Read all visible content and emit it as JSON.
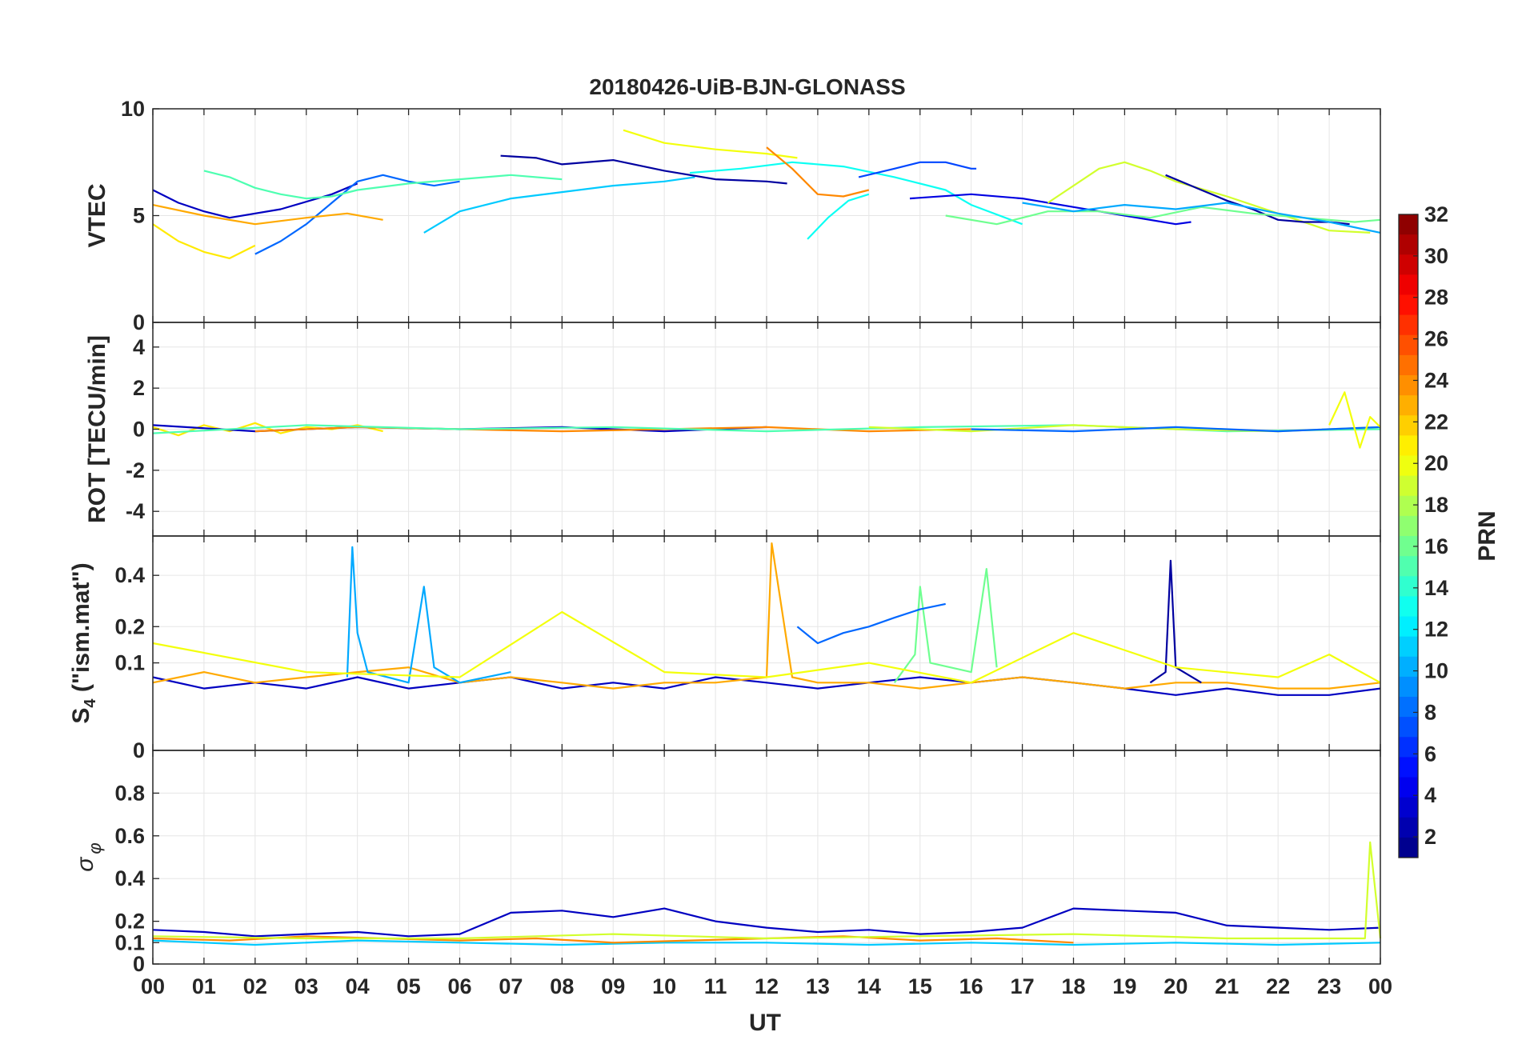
{
  "title": "20180426-UiB-BJN-GLONASS",
  "xlabel": "UT",
  "x_ticks": [
    "00",
    "01",
    "02",
    "03",
    "04",
    "05",
    "06",
    "07",
    "08",
    "09",
    "10",
    "11",
    "12",
    "13",
    "14",
    "15",
    "16",
    "17",
    "18",
    "19",
    "20",
    "21",
    "22",
    "23",
    "00"
  ],
  "colorbar": {
    "label": "PRN",
    "ticks": [
      "2",
      "4",
      "6",
      "8",
      "10",
      "12",
      "14",
      "16",
      "18",
      "20",
      "22",
      "24",
      "26",
      "28",
      "30",
      "32"
    ],
    "range": [
      1,
      32
    ],
    "colormap": "jet"
  },
  "colors": {
    "axes": "#262626",
    "grid": "#e6e6e6",
    "background": "#ffffff"
  },
  "chart_data": [
    {
      "type": "line",
      "panel": "vtec",
      "ylabel": "VTEC",
      "y_ticks": [
        "0",
        "5",
        "10"
      ],
      "ylim": [
        0,
        10
      ],
      "xlim": [
        0,
        24
      ],
      "series": [
        {
          "prn": 3,
          "x": [
            0.0,
            0.5,
            1.0,
            1.5,
            2.5,
            3.5,
            4.0
          ],
          "y": [
            6.2,
            5.6,
            5.2,
            4.9,
            5.3,
            6.0,
            6.5
          ]
        },
        {
          "prn": 8,
          "x": [
            2.0,
            2.5,
            3.0,
            3.5,
            4.0,
            4.5,
            5.0,
            5.5,
            6.0
          ],
          "y": [
            3.2,
            3.8,
            4.6,
            5.6,
            6.6,
            6.9,
            6.6,
            6.4,
            6.6
          ]
        },
        {
          "prn": 11,
          "x": [
            5.3,
            6.0,
            7.0,
            8.0,
            9.0,
            10.0,
            10.6
          ],
          "y": [
            4.2,
            5.2,
            5.8,
            6.1,
            6.4,
            6.6,
            6.8
          ]
        },
        {
          "prn": 21,
          "x": [
            0.0,
            0.5,
            1.0,
            1.5,
            2.0
          ],
          "y": [
            4.6,
            3.8,
            3.3,
            3.0,
            3.6
          ]
        },
        {
          "prn": 23,
          "x": [
            0.0,
            1.0,
            2.0,
            3.0,
            3.8,
            4.5
          ],
          "y": [
            5.5,
            5.0,
            4.6,
            4.9,
            5.1,
            4.8
          ]
        },
        {
          "prn": 15,
          "x": [
            1.0,
            1.5,
            2.0,
            2.5,
            3.0,
            3.5,
            4.0,
            5.0,
            6.0,
            7.0,
            8.0
          ],
          "y": [
            7.1,
            6.8,
            6.3,
            6.0,
            5.8,
            5.9,
            6.2,
            6.5,
            6.7,
            6.9,
            6.7
          ]
        },
        {
          "prn": 2,
          "x": [
            6.8,
            7.5,
            8.0,
            9.0,
            10.0,
            11.0,
            12.0,
            12.4
          ],
          "y": [
            7.8,
            7.7,
            7.4,
            7.6,
            7.1,
            6.7,
            6.6,
            6.5
          ]
        },
        {
          "prn": 20,
          "x": [
            9.2,
            10.0,
            11.0,
            12.0,
            12.6
          ],
          "y": [
            9.0,
            8.4,
            8.1,
            7.9,
            7.7
          ]
        },
        {
          "prn": 13,
          "x": [
            10.5,
            11.5,
            12.5,
            13.5,
            14.5,
            15.5,
            16.0,
            17.0
          ],
          "y": [
            7.0,
            7.2,
            7.5,
            7.3,
            6.8,
            6.2,
            5.5,
            4.6
          ]
        },
        {
          "prn": 24,
          "x": [
            12.0,
            12.5,
            13.0,
            13.5,
            14.0
          ],
          "y": [
            8.2,
            7.2,
            6.0,
            5.9,
            6.2
          ]
        },
        {
          "prn": 13,
          "x": [
            12.8,
            13.2,
            13.6,
            14.0
          ],
          "y": [
            3.9,
            4.9,
            5.7,
            6.0
          ]
        },
        {
          "prn": 7,
          "x": [
            13.8,
            14.5,
            15.0,
            15.5,
            16.0,
            16.1
          ],
          "y": [
            6.8,
            7.2,
            7.5,
            7.5,
            7.2,
            7.2
          ]
        },
        {
          "prn": 4,
          "x": [
            14.8,
            16.0,
            17.0,
            18.0,
            19.0,
            20.0,
            20.3
          ],
          "y": [
            5.8,
            6.0,
            5.8,
            5.4,
            5.0,
            4.6,
            4.7
          ]
        },
        {
          "prn": 19,
          "x": [
            17.5,
            18.5,
            19.0,
            19.5,
            20.0,
            21.0,
            22.0,
            23.0,
            23.8
          ],
          "y": [
            5.6,
            7.2,
            7.5,
            7.1,
            6.6,
            5.9,
            5.1,
            4.3,
            4.2
          ]
        },
        {
          "prn": 2,
          "x": [
            19.8,
            20.5,
            21.0,
            21.5,
            22.0,
            22.5,
            23.0,
            23.4
          ],
          "y": [
            6.9,
            6.2,
            5.7,
            5.3,
            4.8,
            4.7,
            4.7,
            4.6
          ]
        },
        {
          "prn": 16,
          "x": [
            15.5,
            16.5,
            17.5,
            18.5,
            19.5,
            20.5,
            21.5,
            22.5,
            23.5,
            24.0
          ],
          "y": [
            5.0,
            4.6,
            5.2,
            5.2,
            4.9,
            5.4,
            5.1,
            4.9,
            4.7,
            4.8
          ]
        },
        {
          "prn": 10,
          "x": [
            17.0,
            18.0,
            19.0,
            20.0,
            21.0,
            22.0,
            23.0,
            24.0
          ],
          "y": [
            5.6,
            5.2,
            5.5,
            5.3,
            5.6,
            5.1,
            4.7,
            4.2
          ]
        }
      ]
    },
    {
      "type": "line",
      "panel": "rot",
      "ylabel": "ROT [TECU/min]",
      "y_ticks": [
        "-4",
        "-2",
        "0",
        "2",
        "4"
      ],
      "ylim": [
        -5.2,
        5.2
      ],
      "xlim": [
        0,
        24
      ],
      "series": [
        {
          "prn": 21,
          "x": [
            0.0,
            0.5,
            1.0,
            1.5,
            2.0,
            2.5,
            3.0,
            3.5,
            4.0,
            4.5
          ],
          "y": [
            0.1,
            -0.3,
            0.2,
            -0.1,
            0.3,
            -0.2,
            0.1,
            0.0,
            0.2,
            -0.1
          ]
        },
        {
          "prn": 3,
          "x": [
            0.0,
            2.0,
            4.0,
            6.0,
            8.0,
            10.0,
            12.0
          ],
          "y": [
            0.2,
            -0.1,
            0.1,
            0.0,
            0.1,
            -0.1,
            0.1
          ]
        },
        {
          "prn": 24,
          "x": [
            2.0,
            4.0,
            6.0,
            8.0,
            10.0,
            12.0,
            14.0,
            16.0
          ],
          "y": [
            -0.1,
            0.1,
            0.0,
            -0.1,
            0.0,
            0.1,
            -0.1,
            0.0
          ]
        },
        {
          "prn": 15,
          "x": [
            0.0,
            3.0,
            6.0,
            9.0,
            12.0,
            15.0,
            18.0,
            21.0,
            24.0
          ],
          "y": [
            -0.2,
            0.2,
            0.0,
            0.1,
            -0.1,
            0.1,
            0.2,
            -0.1,
            0.0
          ]
        },
        {
          "prn": 19,
          "x": [
            14.0,
            16.0,
            18.0,
            20.0,
            22.0,
            24.0
          ],
          "y": [
            0.1,
            -0.1,
            0.2,
            0.0,
            -0.1,
            0.1
          ]
        },
        {
          "prn": 8,
          "x": [
            16.0,
            18.0,
            20.0,
            22.0,
            24.0
          ],
          "y": [
            0.0,
            -0.1,
            0.1,
            -0.1,
            0.1
          ]
        },
        {
          "prn": 20,
          "x": [
            23.0,
            23.3,
            23.6,
            23.8,
            24.0
          ],
          "y": [
            0.2,
            1.8,
            -0.9,
            0.6,
            0.1
          ]
        }
      ]
    },
    {
      "type": "line",
      "panel": "s4",
      "ylabel": "S4 (\"ism.mat\")",
      "y_ticks": [
        "0",
        "0.1",
        "0.2",
        "0.4"
      ],
      "ylim": [
        0,
        0.6
      ],
      "y_scale": "sqrt",
      "xlim": [
        0,
        24
      ],
      "series": [
        {
          "prn": 3,
          "x": [
            0.0,
            1.0,
            2.0,
            3.0,
            4.0,
            5.0,
            6.0,
            7.0,
            8.0,
            9.0,
            10.0,
            11.0,
            12.0,
            13.0,
            14.0,
            15.0,
            16.0,
            17.0,
            18.0,
            19.0,
            20.0,
            21.0,
            22.0,
            23.0,
            24.0
          ],
          "y": [
            0.07,
            0.05,
            0.06,
            0.05,
            0.07,
            0.05,
            0.06,
            0.07,
            0.05,
            0.06,
            0.05,
            0.07,
            0.06,
            0.05,
            0.06,
            0.07,
            0.06,
            0.07,
            0.06,
            0.05,
            0.04,
            0.05,
            0.04,
            0.04,
            0.05
          ]
        },
        {
          "prn": 23,
          "x": [
            0.0,
            1.0,
            2.0,
            3.0,
            4.0,
            5.0,
            6.0,
            7.0,
            8.0,
            9.0,
            10.0,
            11.0,
            12.0,
            12.1,
            12.5,
            13.0,
            14.0,
            15.0,
            16.0,
            17.0,
            18.0,
            19.0,
            20.0,
            21.0,
            22.0,
            23.0,
            24.0
          ],
          "y": [
            0.06,
            0.08,
            0.06,
            0.07,
            0.08,
            0.09,
            0.06,
            0.07,
            0.06,
            0.05,
            0.06,
            0.06,
            0.07,
            0.56,
            0.07,
            0.06,
            0.06,
            0.05,
            0.06,
            0.07,
            0.06,
            0.05,
            0.06,
            0.06,
            0.05,
            0.05,
            0.06
          ]
        },
        {
          "prn": 10,
          "x": [
            3.8,
            3.9,
            4.0,
            4.2,
            5.0,
            5.3,
            5.5,
            6.0,
            7.0
          ],
          "y": [
            0.07,
            0.54,
            0.18,
            0.08,
            0.06,
            0.35,
            0.09,
            0.06,
            0.08
          ]
        },
        {
          "prn": 2,
          "x": [
            19.5,
            19.8,
            19.9,
            20.0,
            20.5
          ],
          "y": [
            0.06,
            0.08,
            0.47,
            0.09,
            0.06
          ]
        },
        {
          "prn": 16,
          "x": [
            14.5,
            14.9,
            15.0,
            15.2,
            16.0,
            16.3,
            16.5
          ],
          "y": [
            0.06,
            0.12,
            0.35,
            0.1,
            0.08,
            0.43,
            0.09
          ]
        },
        {
          "prn": 20,
          "x": [
            0.0,
            3.0,
            6.0,
            8.0,
            10.0,
            12.0,
            14.0,
            16.0,
            18.0,
            20.0,
            22.0,
            23.0,
            24.0
          ],
          "y": [
            0.15,
            0.08,
            0.07,
            0.25,
            0.08,
            0.07,
            0.1,
            0.06,
            0.18,
            0.09,
            0.07,
            0.12,
            0.06
          ]
        },
        {
          "prn": 8,
          "x": [
            12.6,
            13.0,
            13.5,
            14.0,
            14.5,
            15.0,
            15.5
          ],
          "y": [
            0.2,
            0.15,
            0.18,
            0.2,
            0.23,
            0.26,
            0.28
          ]
        }
      ]
    },
    {
      "type": "line",
      "panel": "sigma_phi",
      "ylabel": "σφ",
      "y_ticks": [
        "0",
        "0.1",
        "0.2",
        "0.4",
        "0.6",
        "0.8"
      ],
      "ylim": [
        0,
        1.0
      ],
      "y_scale": "piecewise",
      "xlim": [
        0,
        24
      ],
      "series": [
        {
          "prn": 3,
          "x": [
            0.0,
            1.0,
            2.0,
            3.0,
            4.0,
            5.0,
            6.0,
            7.0,
            8.0,
            9.0,
            10.0,
            11.0,
            12.0,
            13.0,
            14.0,
            15.0,
            16.0,
            17.0,
            18.0,
            19.0,
            20.0,
            21.0,
            22.0,
            23.0,
            24.0
          ],
          "y": [
            0.16,
            0.15,
            0.13,
            0.14,
            0.15,
            0.13,
            0.14,
            0.24,
            0.25,
            0.22,
            0.26,
            0.2,
            0.17,
            0.15,
            0.16,
            0.14,
            0.15,
            0.17,
            0.26,
            0.25,
            0.24,
            0.18,
            0.17,
            0.16,
            0.17
          ]
        },
        {
          "prn": 11,
          "x": [
            0.0,
            2.0,
            4.0,
            6.0,
            8.0,
            10.0,
            12.0,
            14.0,
            16.0,
            18.0,
            20.0,
            22.0,
            24.0
          ],
          "y": [
            0.11,
            0.09,
            0.11,
            0.1,
            0.09,
            0.1,
            0.1,
            0.09,
            0.1,
            0.09,
            0.1,
            0.09,
            0.1
          ]
        },
        {
          "prn": 24,
          "x": [
            0.0,
            1.5,
            3.0,
            4.5,
            6.0,
            7.5,
            9.0,
            10.5,
            12.0,
            13.5,
            15.0,
            16.5,
            18.0
          ],
          "y": [
            0.12,
            0.11,
            0.13,
            0.12,
            0.11,
            0.12,
            0.1,
            0.11,
            0.12,
            0.13,
            0.11,
            0.12,
            0.1
          ]
        },
        {
          "prn": 19,
          "x": [
            0.0,
            3.0,
            6.0,
            9.0,
            12.0,
            15.0,
            18.0,
            21.0,
            23.7,
            23.8,
            24.0
          ],
          "y": [
            0.13,
            0.12,
            0.12,
            0.14,
            0.12,
            0.13,
            0.14,
            0.12,
            0.12,
            0.57,
            0.12
          ]
        }
      ]
    }
  ]
}
